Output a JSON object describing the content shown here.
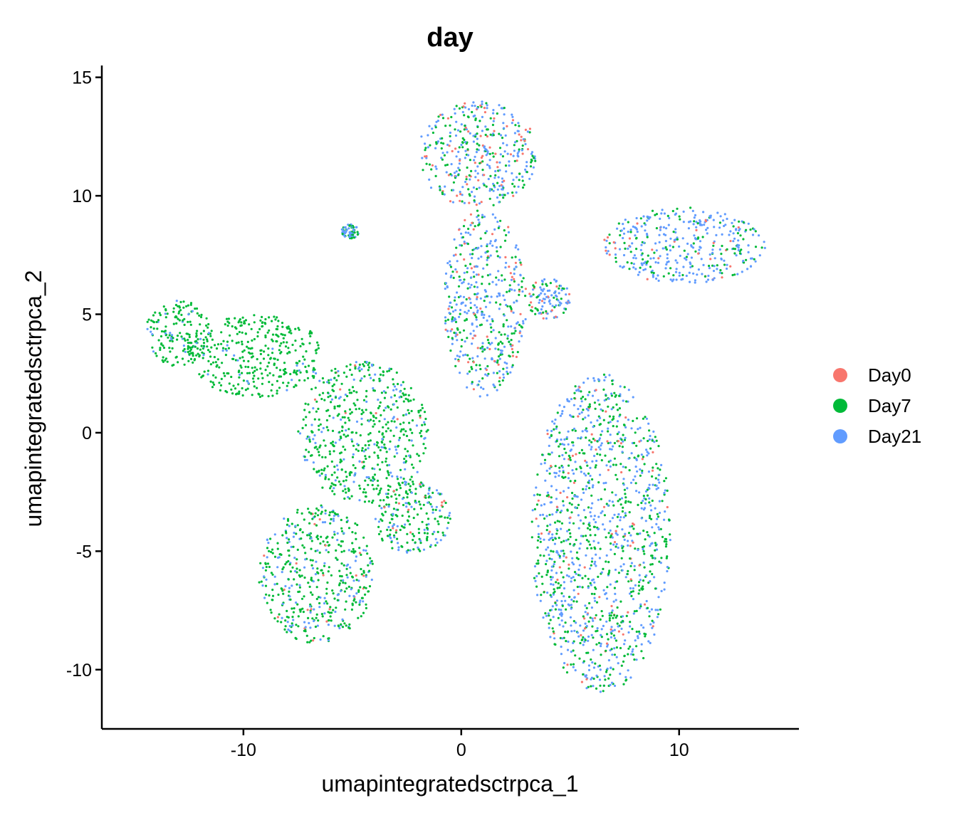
{
  "chart_data": {
    "type": "scatter",
    "title": "day",
    "xlabel": "umapintegratedsctrpca_1",
    "ylabel": "umapintegratedsctrpca_2",
    "xlim": [
      -16.5,
      15.5
    ],
    "ylim": [
      -12.5,
      15.5
    ],
    "xticks": [
      -10,
      0,
      10
    ],
    "xtick_labels": [
      "-10",
      "0",
      "10"
    ],
    "yticks": [
      -10,
      -5,
      0,
      5,
      10,
      15
    ],
    "ytick_labels": [
      "-10",
      "-5",
      "0",
      "5",
      "10",
      "15"
    ],
    "grid": false,
    "legend_position": "right",
    "series": [
      {
        "name": "Day0",
        "color": "#F8766D"
      },
      {
        "name": "Day7",
        "color": "#00BA38"
      },
      {
        "name": "Day21",
        "color": "#619CFF"
      }
    ],
    "clusters": [
      {
        "label": "top-left-green-mass",
        "x": [
          -14.5,
          -11.5
        ],
        "y": [
          2.8,
          5.6
        ],
        "mix": [
          0.0,
          0.85,
          0.15
        ]
      },
      {
        "label": "left-arc-trail",
        "x": [
          -12.5,
          -6.3
        ],
        "y": [
          1.5,
          5.0
        ],
        "mix": [
          0.0,
          0.95,
          0.05
        ]
      },
      {
        "label": "central-mass",
        "x": [
          -7.5,
          -1.5
        ],
        "y": [
          -3.0,
          3.0
        ],
        "mix": [
          0.02,
          0.8,
          0.18
        ]
      },
      {
        "label": "central-right-lobe",
        "x": [
          -4.0,
          -0.5
        ],
        "y": [
          -5.2,
          -2.0
        ],
        "mix": [
          0.03,
          0.65,
          0.32
        ]
      },
      {
        "label": "bottom-left-hook",
        "x": [
          -9.3,
          -4.0
        ],
        "y": [
          -8.9,
          -3.0
        ],
        "mix": [
          0.03,
          0.7,
          0.27
        ]
      },
      {
        "label": "right-tall-mass",
        "x": [
          3.2,
          9.6
        ],
        "y": [
          -11.0,
          2.5
        ],
        "mix": [
          0.05,
          0.45,
          0.5
        ]
      },
      {
        "label": "top-center-cluster",
        "x": [
          -2.0,
          3.5
        ],
        "y": [
          9.5,
          14.0
        ],
        "mix": [
          0.12,
          0.35,
          0.53
        ]
      },
      {
        "label": "upper-right-arm",
        "x": [
          6.5,
          14.0
        ],
        "y": [
          6.3,
          9.5
        ],
        "mix": [
          0.05,
          0.3,
          0.65
        ]
      },
      {
        "label": "center-stem",
        "x": [
          -0.8,
          3.0
        ],
        "y": [
          1.5,
          9.5
        ],
        "mix": [
          0.12,
          0.35,
          0.53
        ]
      },
      {
        "label": "small-right-island",
        "x": [
          3.0,
          5.0
        ],
        "y": [
          4.8,
          6.5
        ],
        "mix": [
          0.15,
          0.25,
          0.6
        ]
      },
      {
        "label": "small-left-island",
        "x": [
          -5.5,
          -4.7
        ],
        "y": [
          8.2,
          8.8
        ],
        "mix": [
          0.0,
          0.4,
          0.6
        ]
      }
    ]
  }
}
